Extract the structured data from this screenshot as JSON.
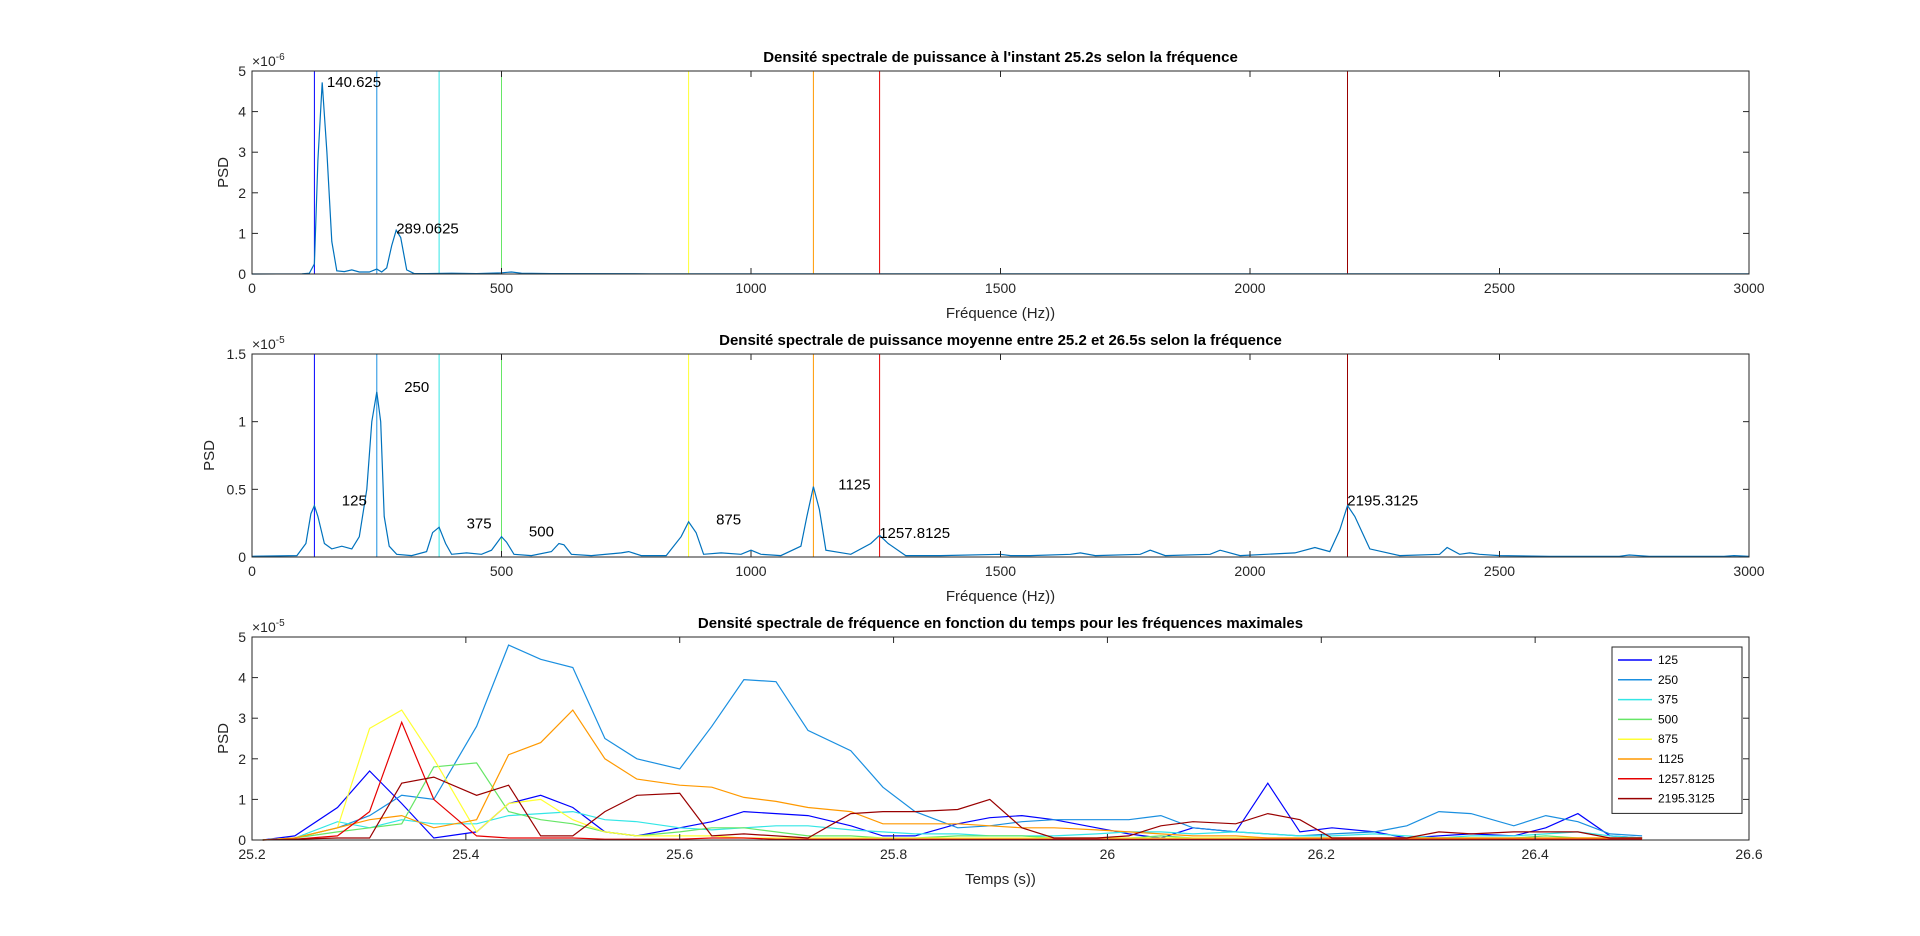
{
  "chart_data": [
    {
      "type": "line",
      "title": "Densité spectrale de puissance à l'instant 25.2s selon la fréquence",
      "xlabel": "Fréquence (Hz))",
      "ylabel": "PSD",
      "exponent": "×10",
      "exponent_power": "-6",
      "xlim": [
        0,
        3000
      ],
      "ylim": [
        0,
        5
      ],
      "xticks": [
        0,
        500,
        1000,
        1500,
        2000,
        2500,
        3000
      ],
      "yticks": [
        0,
        1,
        2,
        3,
        4,
        5
      ],
      "xtick_labels": [
        "0",
        "500",
        "1000",
        "1500",
        "2000",
        "2500",
        "3000"
      ],
      "ytick_labels": [
        "0",
        "1",
        "2",
        "3",
        "4",
        "5"
      ],
      "vlines": [
        {
          "x": 125,
          "color": "#0000ff"
        },
        {
          "x": 250,
          "color": "#1a8fe0"
        },
        {
          "x": 375,
          "color": "#33e6e6"
        },
        {
          "x": 500,
          "color": "#66e666"
        },
        {
          "x": 875,
          "color": "#ffff33"
        },
        {
          "x": 1125,
          "color": "#ff9900"
        },
        {
          "x": 1257.8125,
          "color": "#e60000"
        },
        {
          "x": 2195.3125,
          "color": "#990000"
        }
      ],
      "series": [
        {
          "color": "#0072bd",
          "x": [
            0,
            100,
            115,
            125,
            132,
            140.625,
            150,
            160,
            170,
            185,
            200,
            215,
            235,
            250,
            260,
            270,
            280,
            289.0625,
            298,
            310,
            325,
            350,
            400,
            450,
            500,
            520,
            540,
            600,
            800,
            1000,
            1500,
            2000,
            2500,
            3000
          ],
          "y": [
            0,
            0.005,
            0.02,
            0.25,
            2.8,
            4.72,
            3.0,
            0.8,
            0.08,
            0.06,
            0.1,
            0.05,
            0.05,
            0.12,
            0.05,
            0.15,
            0.7,
            1.08,
            0.9,
            0.1,
            0.01,
            0.01,
            0.02,
            0.01,
            0.03,
            0.05,
            0.02,
            0.01,
            0.005,
            0.005,
            0.005,
            0.005,
            0.005,
            0.005
          ]
        }
      ],
      "annotations": [
        {
          "x": 150,
          "y": 4.6,
          "text": "140.625"
        },
        {
          "x": 289,
          "y": 1.0,
          "text": "289.0625"
        }
      ]
    },
    {
      "type": "line",
      "title": "Densité spectrale de puissance moyenne entre 25.2 et 26.5s selon la fréquence",
      "xlabel": "Fréquence (Hz))",
      "ylabel": "PSD",
      "exponent": "×10",
      "exponent_power": "-5",
      "xlim": [
        0,
        3000
      ],
      "ylim": [
        0,
        1.5
      ],
      "xticks": [
        0,
        500,
        1000,
        1500,
        2000,
        2500,
        3000
      ],
      "yticks": [
        0,
        0.5,
        1,
        1.5
      ],
      "xtick_labels": [
        "0",
        "500",
        "1000",
        "1500",
        "2000",
        "2500",
        "3000"
      ],
      "ytick_labels": [
        "0",
        "0.5",
        "1",
        "1.5"
      ],
      "vlines": [
        {
          "x": 125,
          "color": "#0000ff"
        },
        {
          "x": 250,
          "color": "#1a8fe0"
        },
        {
          "x": 375,
          "color": "#33e6e6"
        },
        {
          "x": 500,
          "color": "#66e666"
        },
        {
          "x": 875,
          "color": "#ffff33"
        },
        {
          "x": 1125,
          "color": "#ff9900"
        },
        {
          "x": 1257.8125,
          "color": "#e60000"
        },
        {
          "x": 2195.3125,
          "color": "#990000"
        }
      ],
      "series": [
        {
          "color": "#0072bd",
          "x": [
            0,
            90,
            108,
            118,
            125,
            132,
            145,
            160,
            180,
            200,
            215,
            230,
            240,
            250,
            258,
            265,
            275,
            290,
            320,
            350,
            362,
            375,
            388,
            400,
            430,
            460,
            480,
            490,
            500,
            510,
            525,
            560,
            600,
            615,
            625,
            640,
            680,
            740,
            755,
            780,
            830,
            860,
            875,
            890,
            905,
            940,
            980,
            1000,
            1020,
            1060,
            1100,
            1112,
            1125,
            1137,
            1150,
            1200,
            1240,
            1257.8,
            1275,
            1310,
            1380,
            1500,
            1520,
            1560,
            1640,
            1660,
            1690,
            1780,
            1800,
            1830,
            1920,
            1940,
            1980,
            2090,
            2130,
            2160,
            2180,
            2195.3,
            2210,
            2240,
            2300,
            2380,
            2395,
            2420,
            2440,
            2460,
            2500,
            2600,
            2740,
            2760,
            2800,
            2950,
            2970,
            3000
          ],
          "y": [
            0.005,
            0.01,
            0.1,
            0.32,
            0.38,
            0.3,
            0.1,
            0.06,
            0.08,
            0.06,
            0.15,
            0.5,
            1.0,
            1.22,
            1.0,
            0.3,
            0.08,
            0.02,
            0.01,
            0.04,
            0.18,
            0.22,
            0.1,
            0.02,
            0.03,
            0.02,
            0.05,
            0.1,
            0.15,
            0.11,
            0.02,
            0.01,
            0.04,
            0.1,
            0.09,
            0.02,
            0.01,
            0.03,
            0.04,
            0.01,
            0.01,
            0.15,
            0.26,
            0.18,
            0.02,
            0.03,
            0.02,
            0.05,
            0.02,
            0.01,
            0.08,
            0.3,
            0.52,
            0.35,
            0.05,
            0.02,
            0.1,
            0.16,
            0.1,
            0.01,
            0.01,
            0.02,
            0.01,
            0.01,
            0.02,
            0.03,
            0.01,
            0.02,
            0.05,
            0.01,
            0.02,
            0.05,
            0.01,
            0.03,
            0.07,
            0.04,
            0.2,
            0.38,
            0.3,
            0.06,
            0.01,
            0.02,
            0.07,
            0.02,
            0.03,
            0.02,
            0.01,
            0.005,
            0.005,
            0.015,
            0.005,
            0.005,
            0.01,
            0.005
          ]
        }
      ],
      "annotations": [
        {
          "x": 305,
          "y": 1.22,
          "text": "250"
        },
        {
          "x": 180,
          "y": 0.38,
          "text": "125"
        },
        {
          "x": 430,
          "y": 0.21,
          "text": "375"
        },
        {
          "x": 555,
          "y": 0.15,
          "text": "500"
        },
        {
          "x": 930,
          "y": 0.24,
          "text": "875"
        },
        {
          "x": 1175,
          "y": 0.5,
          "text": "1125"
        },
        {
          "x": 1257,
          "y": 0.14,
          "text": "1257.8125"
        },
        {
          "x": 2195,
          "y": 0.38,
          "text": "2195.3125"
        }
      ]
    },
    {
      "type": "line",
      "title": "Densité spectrale de fréquence en fonction du temps pour les fréquences maximales",
      "xlabel": "Temps (s))",
      "ylabel": "PSD",
      "exponent": "×10",
      "exponent_power": "-5",
      "xlim": [
        25.2,
        26.6
      ],
      "ylim": [
        0,
        5
      ],
      "xticks": [
        25.2,
        25.4,
        25.6,
        25.8,
        26,
        26.2,
        26.4,
        26.6
      ],
      "yticks": [
        0,
        1,
        2,
        3,
        4,
        5
      ],
      "xtick_labels": [
        "25.2",
        "25.4",
        "25.6",
        "25.8",
        "26",
        "26.2",
        "26.4",
        "26.6"
      ],
      "ytick_labels": [
        "0",
        "1",
        "2",
        "3",
        "4",
        "5"
      ],
      "legend": "top-right",
      "x": [
        25.21,
        25.24,
        25.28,
        25.31,
        25.34,
        25.37,
        25.41,
        25.44,
        25.47,
        25.5,
        25.53,
        25.56,
        25.6,
        25.63,
        25.66,
        25.69,
        25.72,
        25.76,
        25.79,
        25.82,
        25.86,
        25.89,
        25.92,
        25.95,
        25.99,
        26.02,
        26.05,
        26.08,
        26.12,
        26.15,
        26.18,
        26.21,
        26.25,
        26.28,
        26.31,
        26.34,
        26.38,
        26.41,
        26.44,
        26.47,
        26.5
      ],
      "series": [
        {
          "name": "125",
          "color": "#0000ff",
          "values": [
            0.0,
            0.1,
            0.8,
            1.7,
            0.9,
            0.05,
            0.2,
            0.9,
            1.1,
            0.8,
            0.2,
            0.1,
            0.3,
            0.45,
            0.7,
            0.65,
            0.6,
            0.35,
            0.1,
            0.1,
            0.4,
            0.55,
            0.6,
            0.5,
            0.3,
            0.15,
            0.05,
            0.3,
            0.2,
            1.4,
            0.2,
            0.3,
            0.2,
            0.05,
            0.1,
            0.15,
            0.1,
            0.3,
            0.65,
            0.1,
            0.05
          ]
        },
        {
          "name": "250",
          "color": "#1a8fe0",
          "values": [
            0.0,
            0.05,
            0.3,
            0.6,
            1.1,
            1.0,
            2.8,
            4.8,
            4.45,
            4.25,
            2.5,
            2.0,
            1.75,
            2.8,
            3.95,
            3.9,
            2.7,
            2.2,
            1.3,
            0.7,
            0.3,
            0.35,
            0.45,
            0.5,
            0.5,
            0.5,
            0.6,
            0.3,
            0.2,
            0.15,
            0.1,
            0.15,
            0.2,
            0.35,
            0.7,
            0.65,
            0.35,
            0.6,
            0.45,
            0.15,
            0.1
          ]
        },
        {
          "name": "375",
          "color": "#33e6e6",
          "values": [
            0.0,
            0.05,
            0.45,
            0.3,
            0.5,
            0.4,
            0.4,
            0.6,
            0.65,
            0.7,
            0.5,
            0.45,
            0.3,
            0.25,
            0.3,
            0.35,
            0.35,
            0.25,
            0.2,
            0.15,
            0.15,
            0.1,
            0.1,
            0.1,
            0.15,
            0.2,
            0.2,
            0.15,
            0.2,
            0.15,
            0.1,
            0.1,
            0.15,
            0.1,
            0.05,
            0.1,
            0.1,
            0.15,
            0.2,
            0.1,
            0.05
          ]
        },
        {
          "name": "500",
          "color": "#66e666",
          "values": [
            0.0,
            0.05,
            0.2,
            0.3,
            0.4,
            1.8,
            1.9,
            0.7,
            0.5,
            0.4,
            0.2,
            0.1,
            0.2,
            0.3,
            0.3,
            0.2,
            0.1,
            0.1,
            0.05,
            0.05,
            0.1,
            0.1,
            0.1,
            0.05,
            0.05,
            0.05,
            0.1,
            0.05,
            0.05,
            0.05,
            0.05,
            0.05,
            0.05,
            0.05,
            0.05,
            0.05,
            0.05,
            0.1,
            0.05,
            0.05,
            0.05
          ]
        },
        {
          "name": "875",
          "color": "#ffff33",
          "values": [
            0.0,
            0.05,
            0.3,
            2.75,
            3.2,
            2.0,
            0.2,
            0.9,
            1.0,
            0.5,
            0.2,
            0.1,
            0.1,
            0.1,
            0.05,
            0.05,
            0.05,
            0.05,
            0.05,
            0.05,
            0.05,
            0.05,
            0.05,
            0.05,
            0.05,
            0.05,
            0.05,
            0.05,
            0.05,
            0.05,
            0.05,
            0.05,
            0.05,
            0.05,
            0.05,
            0.05,
            0.05,
            0.05,
            0.05,
            0.05,
            0.05
          ]
        },
        {
          "name": "1125",
          "color": "#ff9900",
          "values": [
            0.0,
            0.05,
            0.3,
            0.5,
            0.6,
            0.3,
            0.5,
            2.1,
            2.4,
            3.2,
            2.0,
            1.5,
            1.35,
            1.3,
            1.05,
            0.95,
            0.8,
            0.7,
            0.4,
            0.4,
            0.4,
            0.35,
            0.3,
            0.3,
            0.25,
            0.2,
            0.15,
            0.1,
            0.1,
            0.05,
            0.05,
            0.05,
            0.05,
            0.05,
            0.05,
            0.05,
            0.05,
            0.05,
            0.05,
            0.05,
            0.05
          ]
        },
        {
          "name": "1257.8125",
          "color": "#e60000",
          "values": [
            0.0,
            0.02,
            0.1,
            0.7,
            2.9,
            1.0,
            0.1,
            0.05,
            0.05,
            0.05,
            0.02,
            0.02,
            0.02,
            0.05,
            0.05,
            0.02,
            0.02,
            0.02,
            0.02,
            0.02,
            0.02,
            0.02,
            0.02,
            0.02,
            0.02,
            0.02,
            0.02,
            0.02,
            0.02,
            0.02,
            0.02,
            0.02,
            0.02,
            0.02,
            0.02,
            0.02,
            0.02,
            0.02,
            0.02,
            0.02,
            0.02
          ]
        },
        {
          "name": "2195.3125",
          "color": "#990000",
          "values": [
            0.0,
            0.02,
            0.05,
            0.05,
            1.4,
            1.55,
            1.1,
            1.35,
            0.1,
            0.1,
            0.7,
            1.1,
            1.15,
            0.1,
            0.15,
            0.1,
            0.05,
            0.65,
            0.7,
            0.7,
            0.75,
            1.0,
            0.3,
            0.05,
            0.05,
            0.1,
            0.35,
            0.45,
            0.4,
            0.65,
            0.5,
            0.05,
            0.05,
            0.05,
            0.2,
            0.15,
            0.2,
            0.2,
            0.2,
            0.05,
            0.05
          ]
        }
      ]
    }
  ]
}
